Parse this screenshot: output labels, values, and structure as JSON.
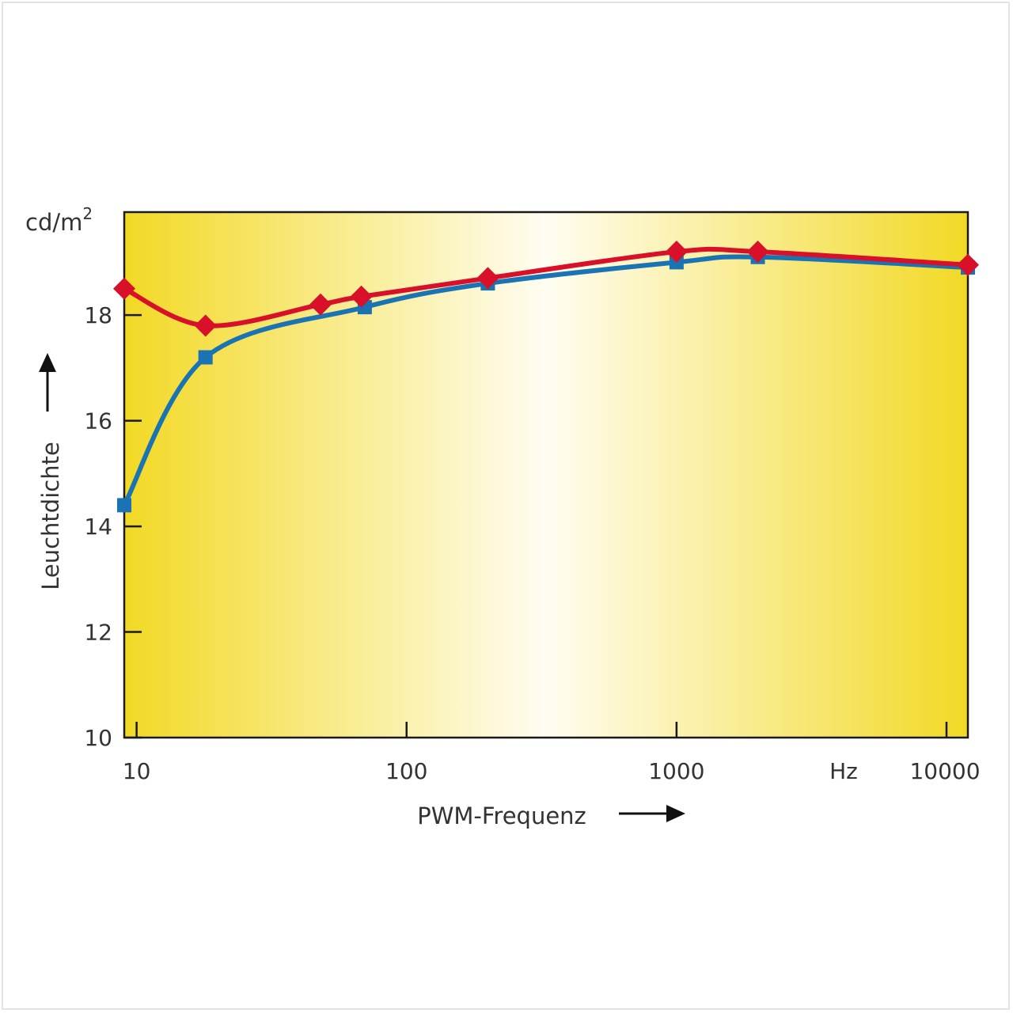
{
  "chart_data": {
    "type": "line",
    "title": "",
    "xlabel": "PWM-Frequenz",
    "ylabel": "Leuchtdichte",
    "y_unit": "cd/m",
    "y_unit_superscript": "2",
    "x_unit": "Hz",
    "x_scale": "log",
    "xlim": [
      9,
      12000
    ],
    "ylim": [
      10,
      20
    ],
    "x_ticks": [
      10,
      100,
      1000,
      10000
    ],
    "x_tick_labels": [
      "10",
      "100",
      "1000",
      "10000"
    ],
    "y_ticks": [
      10,
      12,
      14,
      16,
      18
    ],
    "y_tick_labels": [
      "10",
      "12",
      "14",
      "16",
      "18"
    ],
    "grid": false,
    "background": "yellow-white horizontal gradient",
    "series": [
      {
        "color": "#1a74b4",
        "marker": "square",
        "x": [
          9,
          18,
          70,
          200,
          1000,
          2000,
          12000
        ],
        "y": [
          14.4,
          17.2,
          18.15,
          18.6,
          19.0,
          19.1,
          18.9
        ]
      },
      {
        "color": "#d8102a",
        "marker": "diamond",
        "x": [
          9,
          18,
          48,
          68,
          200,
          1000,
          2000,
          12000
        ],
        "y": [
          18.5,
          17.8,
          18.2,
          18.35,
          18.7,
          19.2,
          19.2,
          18.95
        ]
      }
    ]
  }
}
